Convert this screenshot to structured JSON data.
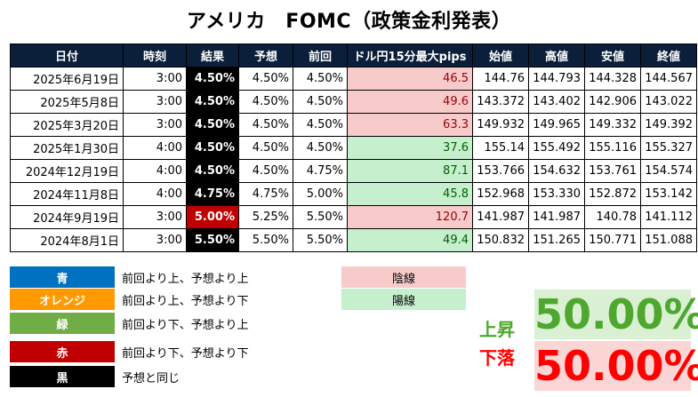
{
  "title": "アメリカ　FOMC（政策金利発表）",
  "table": {
    "headers": [
      "日付",
      "時刻",
      "結果",
      "予想",
      "前回",
      "ドル円15分最大pips",
      "始値",
      "高値",
      "安値",
      "終値"
    ],
    "rows": [
      {
        "date": "2025年6月19日",
        "time": "3:00",
        "result": "4.50%",
        "forecast": "4.50%",
        "previous": "4.50%",
        "pips": "46.5",
        "open": "144.76",
        "high": "144.793",
        "low": "144.328",
        "close": "144.567",
        "result_color": "#000000",
        "candle": "red"
      },
      {
        "date": "2025年5月8日",
        "time": "3:00",
        "result": "4.50%",
        "forecast": "4.50%",
        "previous": "4.50%",
        "pips": "49.6",
        "open": "143.372",
        "high": "143.402",
        "low": "142.906",
        "close": "143.022",
        "result_color": "#000000",
        "candle": "red"
      },
      {
        "date": "2025年3月20日",
        "time": "3:00",
        "result": "4.50%",
        "forecast": "4.50%",
        "previous": "4.50%",
        "pips": "63.3",
        "open": "149.932",
        "high": "149.965",
        "low": "149.332",
        "close": "149.392",
        "result_color": "#000000",
        "candle": "red"
      },
      {
        "date": "2025年1月30日",
        "time": "4:00",
        "result": "4.50%",
        "forecast": "4.50%",
        "previous": "4.50%",
        "pips": "37.6",
        "open": "155.14",
        "high": "155.492",
        "low": "155.116",
        "close": "155.327",
        "result_color": "#000000",
        "candle": "green"
      },
      {
        "date": "2024年12月19日",
        "time": "4:00",
        "result": "4.50%",
        "forecast": "4.50%",
        "previous": "4.75%",
        "pips": "87.1",
        "open": "153.766",
        "high": "154.632",
        "low": "153.761",
        "close": "154.574",
        "result_color": "#000000",
        "candle": "green"
      },
      {
        "date": "2024年11月8日",
        "time": "4:00",
        "result": "4.75%",
        "forecast": "4.75%",
        "previous": "5.00%",
        "pips": "45.8",
        "open": "152.968",
        "high": "153.330",
        "low": "152.872",
        "close": "153.142",
        "result_color": "#000000",
        "candle": "green"
      },
      {
        "date": "2024年9月19日",
        "time": "3:00",
        "result": "5.00%",
        "forecast": "5.25%",
        "previous": "5.50%",
        "pips": "120.7",
        "open": "141.987",
        "high": "141.987",
        "low": "140.78",
        "close": "141.112",
        "result_color": "#c00000",
        "candle": "red"
      },
      {
        "date": "2024年8月1日",
        "time": "3:00",
        "result": "5.50%",
        "forecast": "5.50%",
        "previous": "5.50%",
        "pips": "49.4",
        "open": "150.832",
        "high": "151.265",
        "low": "150.771",
        "close": "151.088",
        "result_color": "#000000",
        "candle": "green"
      }
    ]
  },
  "legend": [
    {
      "label": "青",
      "color": "#0070c0",
      "desc": "前回より上、予想より上"
    },
    {
      "label": "オレンジ",
      "color": "#ff9900",
      "desc": "前回より上、予想より下"
    },
    {
      "label": "緑",
      "color": "#70ad47",
      "desc": "前回より下、予想より上"
    },
    {
      "label": "赤",
      "color": "#c00000",
      "desc": "前回より下、予想より下"
    },
    {
      "label": "黒",
      "color": "#000000",
      "desc": "予想と同じ"
    }
  ],
  "candles": {
    "bearish": {
      "label": "陰線",
      "color": "#f8cbcb"
    },
    "bullish": {
      "label": "陽線",
      "color": "#c6efce"
    }
  },
  "stats": {
    "up_label": "上昇",
    "up_value": "50.00%",
    "up_color": "#4ea72e",
    "up_bg": "#d9f0d3",
    "down_label": "下落",
    "down_value": "50.00%",
    "down_color": "#ff0000",
    "down_bg": "#fcd5d5"
  }
}
